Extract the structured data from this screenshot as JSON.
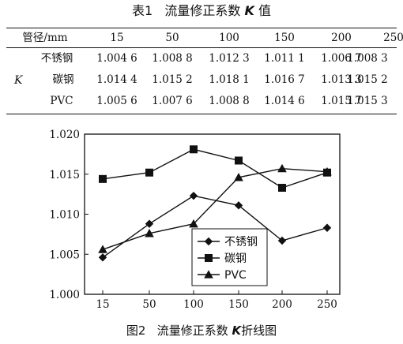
{
  "table": {
    "caption_prefix": "表1",
    "caption_text": "流量修正系数",
    "caption_symbol": "K",
    "caption_suffix": "值",
    "header_label": "管径/mm",
    "columns": [
      "15",
      "50",
      "100",
      "150",
      "200",
      "250"
    ],
    "row_group_label": "K",
    "rows": [
      {
        "name": "不锈钢",
        "values": [
          "1.004 6",
          "1.008 8",
          "1.012 3",
          "1.011 1",
          "1.006 7",
          "1.008 3"
        ]
      },
      {
        "name": "碳钢",
        "values": [
          "1.014 4",
          "1.015 2",
          "1.018 1",
          "1.016 7",
          "1.013 3",
          "1.015 2"
        ]
      },
      {
        "name": "PVC",
        "values": [
          "1.005 6",
          "1.007 6",
          "1.008 8",
          "1.014 6",
          "1.015 7",
          "1.015 3"
        ]
      }
    ]
  },
  "chart_data": {
    "type": "line",
    "categories": [
      "15",
      "50",
      "100",
      "150",
      "200",
      "250"
    ],
    "ylim": [
      1.0,
      1.02
    ],
    "yticks": [
      "1.000",
      "1.005",
      "1.010",
      "1.015",
      "1.020"
    ],
    "xlabel": "",
    "ylabel": "",
    "grid": false,
    "legend_position": "inside-lower-right",
    "series": [
      {
        "name": "不锈钢",
        "marker": "diamond",
        "values": [
          1.0046,
          1.0088,
          1.0123,
          1.0111,
          1.0067,
          1.0083
        ]
      },
      {
        "name": "碳钢",
        "marker": "square",
        "values": [
          1.0144,
          1.0152,
          1.0181,
          1.0167,
          1.0133,
          1.0152
        ]
      },
      {
        "name": "PVC",
        "marker": "triangle",
        "values": [
          1.0056,
          1.0076,
          1.0088,
          1.0146,
          1.0157,
          1.0153
        ]
      }
    ]
  },
  "figure": {
    "caption_prefix": "图2",
    "caption_text": "流量修正系数",
    "caption_symbol": "K",
    "caption_suffix": "折线图"
  }
}
